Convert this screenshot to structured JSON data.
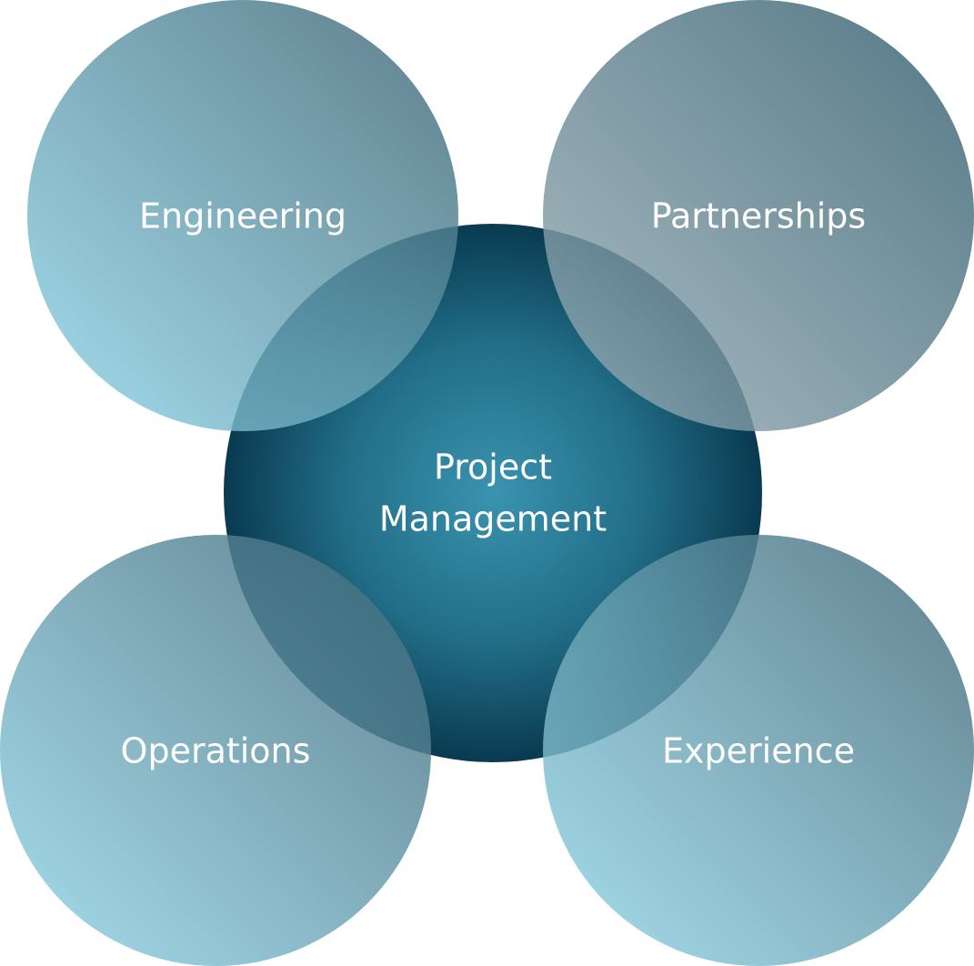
{
  "diagram": {
    "center": {
      "label_line1": "Project",
      "label_line2": "Management",
      "colors": {
        "center": "#3a93b0",
        "mid": "#226e88",
        "edge": "#093a50"
      }
    },
    "nodes": [
      {
        "id": "engineering",
        "label": "Engineering",
        "colors": {
          "light": "#8fd6ea",
          "dark": "#3a6170"
        }
      },
      {
        "id": "partnerships",
        "label": "Partnerships",
        "colors": {
          "light": "#9aafb8",
          "dark": "#2d5a6a"
        }
      },
      {
        "id": "operations",
        "label": "Operations",
        "colors": {
          "light": "#93d8eb",
          "dark": "#3d6474"
        }
      },
      {
        "id": "experience",
        "label": "Experience",
        "colors": {
          "light": "#93d8eb",
          "dark": "#3d6474"
        }
      }
    ]
  }
}
